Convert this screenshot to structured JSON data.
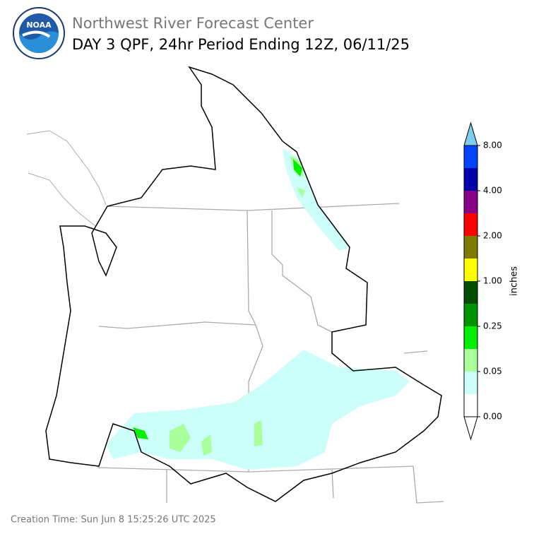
{
  "header": {
    "logo_text": "NOAA",
    "title": "Northwest River Forecast Center",
    "subtitle": "DAY 3 QPF, 24hr Period Ending 12Z, 06/11/25"
  },
  "colorbar": {
    "label": "inches",
    "colors": [
      "#ffffff",
      "#ffffff",
      "#ccfffa",
      "#a9ff9a",
      "#00f000",
      "#009500",
      "#004e00",
      "#ffff00",
      "#7e7a00",
      "#ff0000",
      "#880088",
      "#0000aa",
      "#0044ff",
      "#7ecef2"
    ],
    "ticks": [
      {
        "value": 0,
        "label": "0.00"
      },
      {
        "value": 0.05,
        "label": "0.05"
      },
      {
        "value": 0.25,
        "label": "0.25"
      },
      {
        "value": 1,
        "label": "1.00"
      },
      {
        "value": 2,
        "label": "2.00"
      },
      {
        "value": 4,
        "label": "4.00"
      },
      {
        "value": 8,
        "label": "8.00"
      }
    ]
  },
  "footer": {
    "creation_time": "Creation Time: Sun Jun 8 15:25:26 UTC 2025"
  }
}
